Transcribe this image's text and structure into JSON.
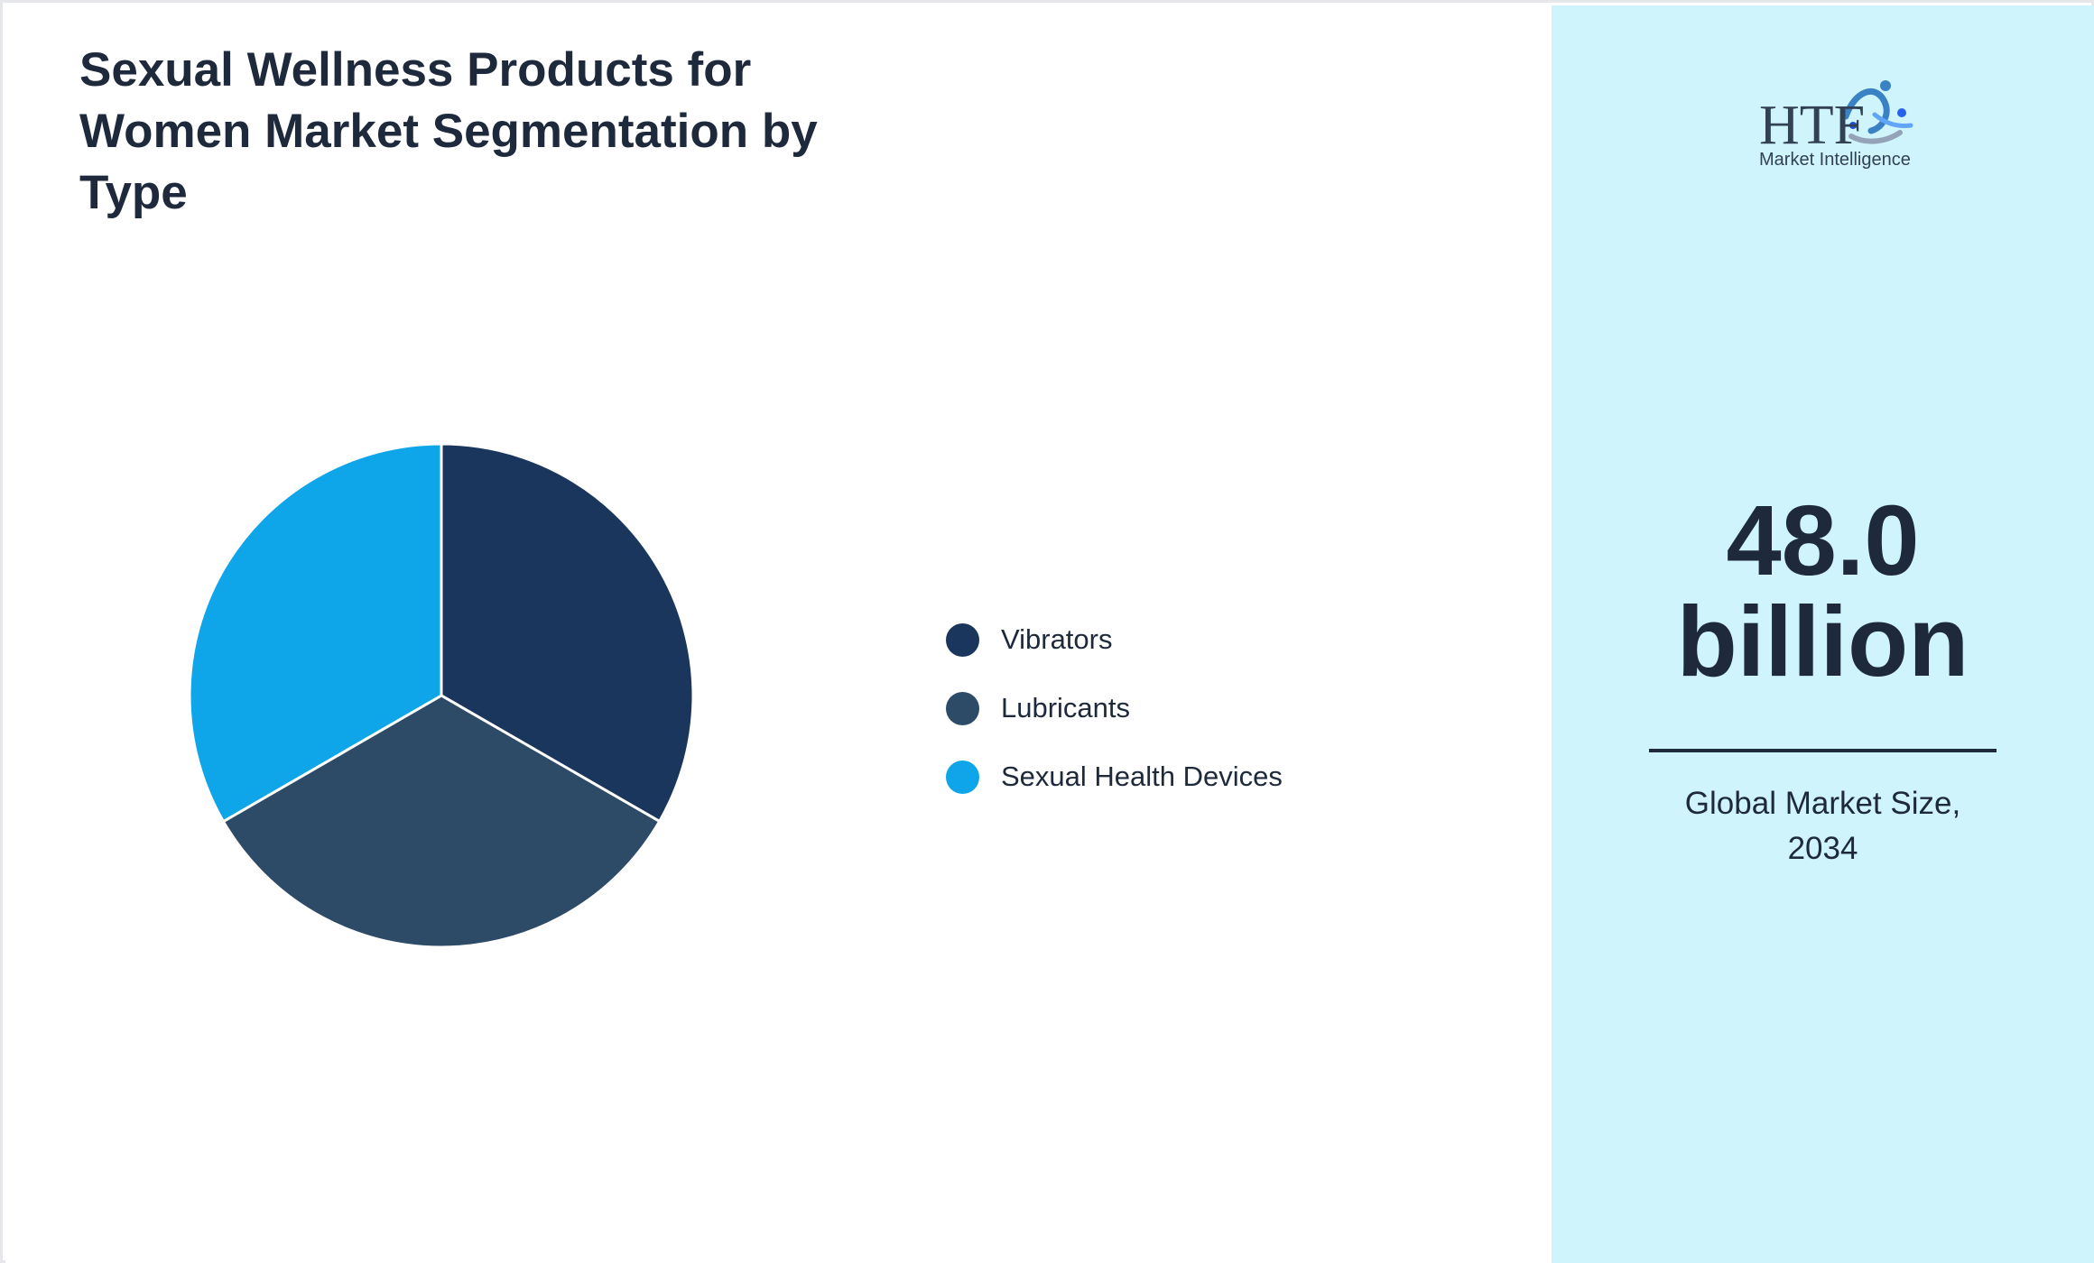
{
  "title": "Sexual Wellness Products for Women Market Segmentation by Type",
  "chart_data": {
    "type": "pie",
    "categories": [
      "Vibrators",
      "Lubricants",
      "Sexual Health Devices"
    ],
    "values": [
      33.33,
      33.33,
      33.34
    ],
    "colors": [
      "#1b365d",
      "#2d4a66",
      "#0ea5e9"
    ],
    "legend_position": "right",
    "start_angle_deg": 0,
    "direction": "clockwise"
  },
  "highlight": {
    "value_line1": "48.0",
    "value_line2": "billion",
    "caption_line1": "Global Market Size,",
    "caption_line2": "2034"
  },
  "logo": {
    "text": "HTF",
    "subtext": "Market Intelligence"
  },
  "colors": {
    "right_panel_bg": "#cff4fc",
    "text_dark": "#1e293b",
    "border": "#e5e7eb"
  }
}
